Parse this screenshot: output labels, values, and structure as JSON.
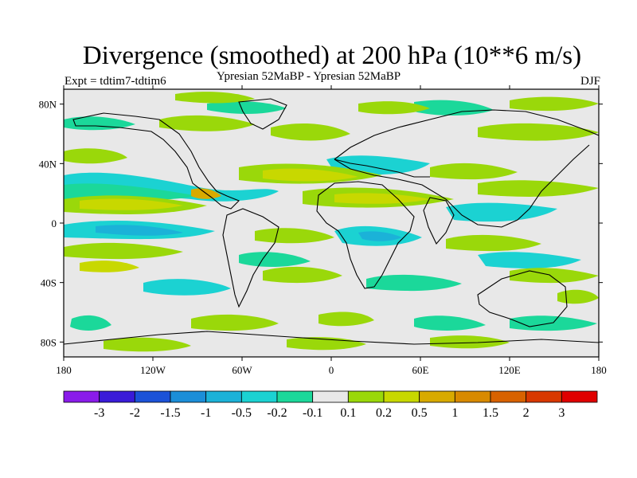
{
  "title": "Divergence (smoothed) at 200 hPa (10**6 m/s)",
  "subtitle": "Ypresian  52MaBP - Ypresian  52MaBP",
  "experiment": "Expt = tdtim7-tdtim6",
  "season": "DJF",
  "axes": {
    "lon_ticks": [
      "180",
      "120W",
      "60W",
      "0",
      "60E",
      "120E",
      "180"
    ],
    "lat_ticks": [
      "80N",
      "40N",
      "0",
      "40S",
      "80S"
    ],
    "lon_values": [
      -180,
      -120,
      -60,
      0,
      60,
      120,
      180
    ],
    "lat_values": [
      80,
      40,
      0,
      -40,
      -80
    ],
    "lon_range": [
      -180,
      180
    ],
    "lat_range": [
      90,
      -90
    ]
  },
  "colorbar": {
    "colors": [
      "#8a1bea",
      "#3a1bd8",
      "#1b52d8",
      "#1b8ed8",
      "#1bb2d8",
      "#1bd2d2",
      "#1bd89a",
      "#e8e8e8",
      "#9ad80a",
      "#c8d800",
      "#d8aa00",
      "#d88a00",
      "#d86200",
      "#d83800",
      "#e00000"
    ],
    "labels": [
      "-3",
      "-2",
      "-1.5",
      "-1",
      "-0.5",
      "-0.2",
      "-0.1",
      "0.1",
      "0.2",
      "0.5",
      "1",
      "1.5",
      "2",
      "3"
    ]
  },
  "map": {
    "background": "#e8e8e8",
    "field_colors": {
      "cyan": "#1bd2d2",
      "teal": "#1bd89a",
      "lime": "#9ad80a",
      "olive": "#c8d800",
      "orange": "#d8aa00",
      "light_blue": "#1bb2d8"
    }
  }
}
